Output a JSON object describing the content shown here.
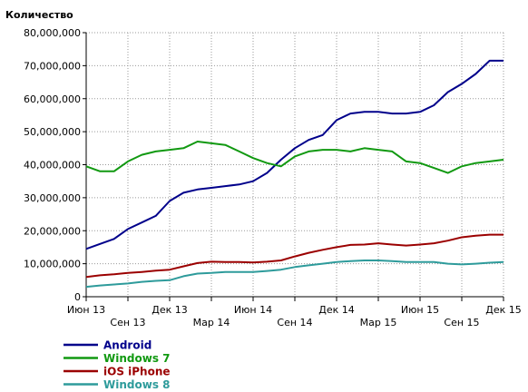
{
  "chart_data": {
    "type": "line",
    "ylabel": "Количество",
    "ylim": [
      0,
      80000000
    ],
    "y_ticks": [
      0,
      10000000,
      20000000,
      30000000,
      40000000,
      50000000,
      60000000,
      70000000,
      80000000
    ],
    "y_tick_labels": [
      "0",
      "10,000,000",
      "20,000,000",
      "30,000,000",
      "40,000,000",
      "50,000,000",
      "60,000,000",
      "70,000,000",
      "80,000,000"
    ],
    "x_ticks_upper": [
      "Июн 13",
      "Дек 13",
      "Июн 14",
      "Дек 14",
      "Июн 15",
      "Дек 15"
    ],
    "x_ticks_lower": [
      "Сен 13",
      "Мар 14",
      "Сен 14",
      "Мар 15",
      "Сен 15"
    ],
    "x_range": [
      "2013-06",
      "2015-12"
    ],
    "x": [
      "2013-06",
      "2013-07",
      "2013-08",
      "2013-09",
      "2013-10",
      "2013-11",
      "2013-12",
      "2014-01",
      "2014-02",
      "2014-03",
      "2014-04",
      "2014-05",
      "2014-06",
      "2014-07",
      "2014-08",
      "2014-09",
      "2014-10",
      "2014-11",
      "2014-12",
      "2015-01",
      "2015-02",
      "2015-03",
      "2015-04",
      "2015-05",
      "2015-06",
      "2015-07",
      "2015-08",
      "2015-09",
      "2015-10",
      "2015-11",
      "2015-12"
    ],
    "grid": true,
    "legend_position": "bottom-left",
    "series": [
      {
        "name": "Android",
        "color": "#00008b",
        "values": [
          14500000,
          16000000,
          17500000,
          20500000,
          22500000,
          24500000,
          29000000,
          31500000,
          32500000,
          33000000,
          33500000,
          34000000,
          35000000,
          37500000,
          41500000,
          45000000,
          47500000,
          49000000,
          53500000,
          55500000,
          56000000,
          56000000,
          55500000,
          55500000,
          56000000,
          58000000,
          62000000,
          64500000,
          67500000,
          71500000,
          71500000
        ]
      },
      {
        "name": "Windows 7",
        "color": "#119911",
        "values": [
          39500000,
          38000000,
          38000000,
          41000000,
          43000000,
          44000000,
          44500000,
          45000000,
          47000000,
          46500000,
          46000000,
          44000000,
          42000000,
          40500000,
          39500000,
          42500000,
          44000000,
          44500000,
          44500000,
          44000000,
          45000000,
          44500000,
          44000000,
          41000000,
          40500000,
          39000000,
          37500000,
          39500000,
          40500000,
          41000000,
          41500000
        ]
      },
      {
        "name": "iOS iPhone",
        "color": "#9b0000",
        "values": [
          6000000,
          6500000,
          6800000,
          7200000,
          7500000,
          7900000,
          8200000,
          9200000,
          10200000,
          10600000,
          10500000,
          10500000,
          10400000,
          10600000,
          11000000,
          12200000,
          13300000,
          14200000,
          15000000,
          15700000,
          15800000,
          16200000,
          15800000,
          15500000,
          15800000,
          16200000,
          17000000,
          18000000,
          18500000,
          18800000,
          18800000
        ]
      },
      {
        "name": "Windows 8",
        "color": "#2e9b9b",
        "values": [
          3000000,
          3400000,
          3700000,
          4000000,
          4500000,
          4800000,
          5000000,
          6200000,
          7000000,
          7200000,
          7500000,
          7500000,
          7500000,
          7800000,
          8200000,
          9000000,
          9500000,
          10000000,
          10500000,
          10800000,
          11000000,
          11000000,
          10800000,
          10500000,
          10500000,
          10500000,
          10000000,
          9800000,
          10000000,
          10300000,
          10500000
        ]
      }
    ]
  }
}
